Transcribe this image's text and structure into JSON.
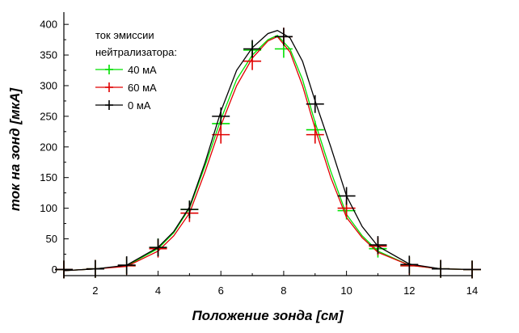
{
  "chart_data": {
    "type": "line",
    "title": "",
    "xlabel": "Положение зонда [см]",
    "ylabel": "ток на зонд [мкА]",
    "xlim": [
      1,
      14
    ],
    "ylim": [
      -10,
      420
    ],
    "xticks": [
      2,
      4,
      6,
      8,
      10,
      12,
      14
    ],
    "yticks": [
      0,
      50,
      100,
      150,
      200,
      250,
      300,
      350,
      400
    ],
    "grid": false,
    "legend": {
      "placement": "top-left",
      "title_lines": [
        "ток эмиссии",
        "нейтрализатора:"
      ],
      "entries": [
        "40 мА",
        "60 мА",
        "0 мА"
      ]
    },
    "series": [
      {
        "name": "40 мА",
        "color": "#00e000",
        "x": [
          1,
          2,
          3,
          4,
          5,
          6,
          7,
          8,
          9,
          10,
          11,
          12,
          13,
          14
        ],
        "y": [
          0,
          1,
          6,
          36,
          98,
          238,
          358,
          360,
          228,
          96,
          34,
          6,
          1,
          0
        ],
        "line_x": [
          1,
          2,
          3,
          4,
          4.5,
          5,
          5.5,
          6,
          6.5,
          7,
          7.5,
          7.8,
          8.2,
          8.6,
          9,
          9.5,
          10,
          10.5,
          11,
          12,
          13,
          14
        ],
        "line_y": [
          -2,
          1,
          6,
          34,
          60,
          100,
          170,
          245,
          310,
          350,
          375,
          382,
          360,
          310,
          240,
          160,
          90,
          55,
          30,
          7,
          1,
          0
        ]
      },
      {
        "name": "60 мА",
        "color": "#e00000",
        "x": [
          1,
          2,
          3,
          4,
          5,
          6,
          7,
          8,
          9,
          10,
          11,
          12,
          13,
          14
        ],
        "y": [
          0,
          1,
          6,
          34,
          92,
          220,
          340,
          380,
          220,
          100,
          38,
          6,
          1,
          0
        ],
        "line_x": [
          1,
          2,
          3,
          4,
          4.5,
          5,
          5.5,
          6,
          6.5,
          7,
          7.5,
          7.8,
          8.2,
          8.6,
          9,
          9.5,
          10,
          10.5,
          11,
          12,
          13,
          14
        ],
        "line_y": [
          -2,
          1,
          5,
          30,
          55,
          92,
          160,
          235,
          300,
          345,
          373,
          380,
          355,
          300,
          230,
          150,
          85,
          52,
          28,
          7,
          1,
          0
        ]
      },
      {
        "name": "0 мА",
        "color": "#000000",
        "x": [
          1,
          2,
          3,
          4,
          5,
          6,
          7,
          8,
          9,
          10,
          11,
          12,
          13,
          14
        ],
        "y": [
          0,
          1,
          7,
          36,
          98,
          250,
          360,
          380,
          270,
          120,
          40,
          8,
          1,
          0
        ],
        "line_x": [
          1,
          2,
          3,
          4,
          4.5,
          5,
          5.5,
          6,
          6.5,
          7,
          7.5,
          7.8,
          8.2,
          8.6,
          9,
          9.5,
          10,
          10.5,
          11,
          12,
          13,
          14
        ],
        "line_y": [
          -2,
          1,
          7,
          36,
          62,
          102,
          175,
          258,
          325,
          362,
          385,
          390,
          378,
          340,
          275,
          200,
          120,
          70,
          38,
          9,
          1,
          0
        ]
      }
    ]
  }
}
